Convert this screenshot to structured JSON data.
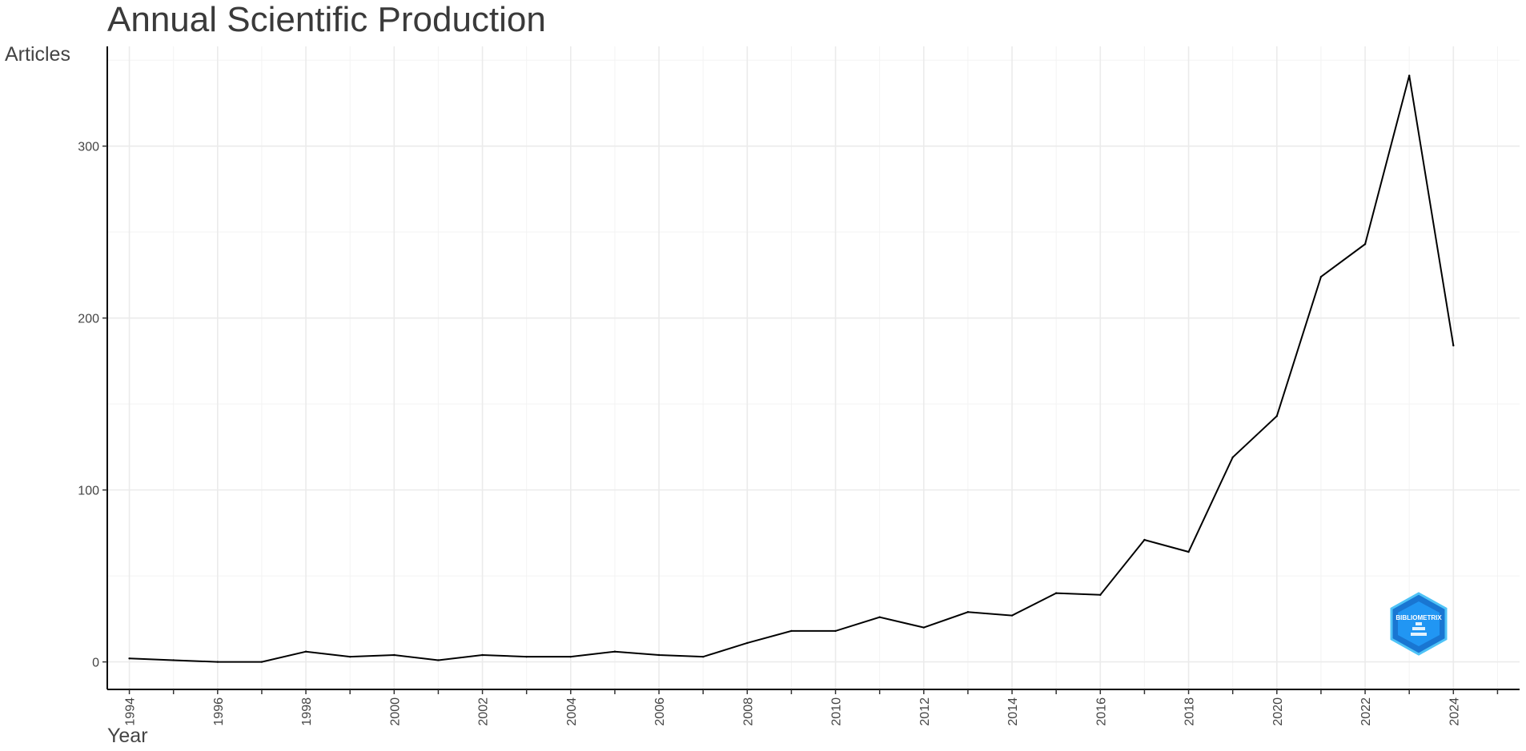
{
  "chart_data": {
    "type": "line",
    "title": "Annual Scientific Production",
    "xlabel": "Year",
    "ylabel": "Articles",
    "x": [
      1994,
      1995,
      1996,
      1997,
      1998,
      1999,
      2000,
      2001,
      2002,
      2003,
      2004,
      2005,
      2006,
      2007,
      2008,
      2009,
      2010,
      2011,
      2012,
      2013,
      2014,
      2015,
      2016,
      2017,
      2018,
      2019,
      2020,
      2021,
      2022,
      2023,
      2024
    ],
    "series": [
      {
        "values": [
          2,
          1,
          0,
          0,
          6,
          3,
          4,
          1,
          4,
          3,
          3,
          6,
          4,
          3,
          11,
          18,
          18,
          26,
          20,
          29,
          27,
          40,
          39,
          71,
          64,
          119,
          143,
          224,
          243,
          341,
          184
        ]
      }
    ],
    "xticks": [
      "1994",
      "1996",
      "1998",
      "2000",
      "2002",
      "2004",
      "2006",
      "2008",
      "2010",
      "2012",
      "2014",
      "2016",
      "2018",
      "2020",
      "2022",
      "2024"
    ],
    "yticks": [
      "0",
      "100",
      "200",
      "300"
    ],
    "xlim": [
      1993.5,
      2025.5
    ],
    "ylim": [
      -16,
      358
    ],
    "grid": true,
    "line_color": "#000000"
  },
  "logo": {
    "text": "BIBLIOMETRIX",
    "color": "#1e88e5"
  }
}
